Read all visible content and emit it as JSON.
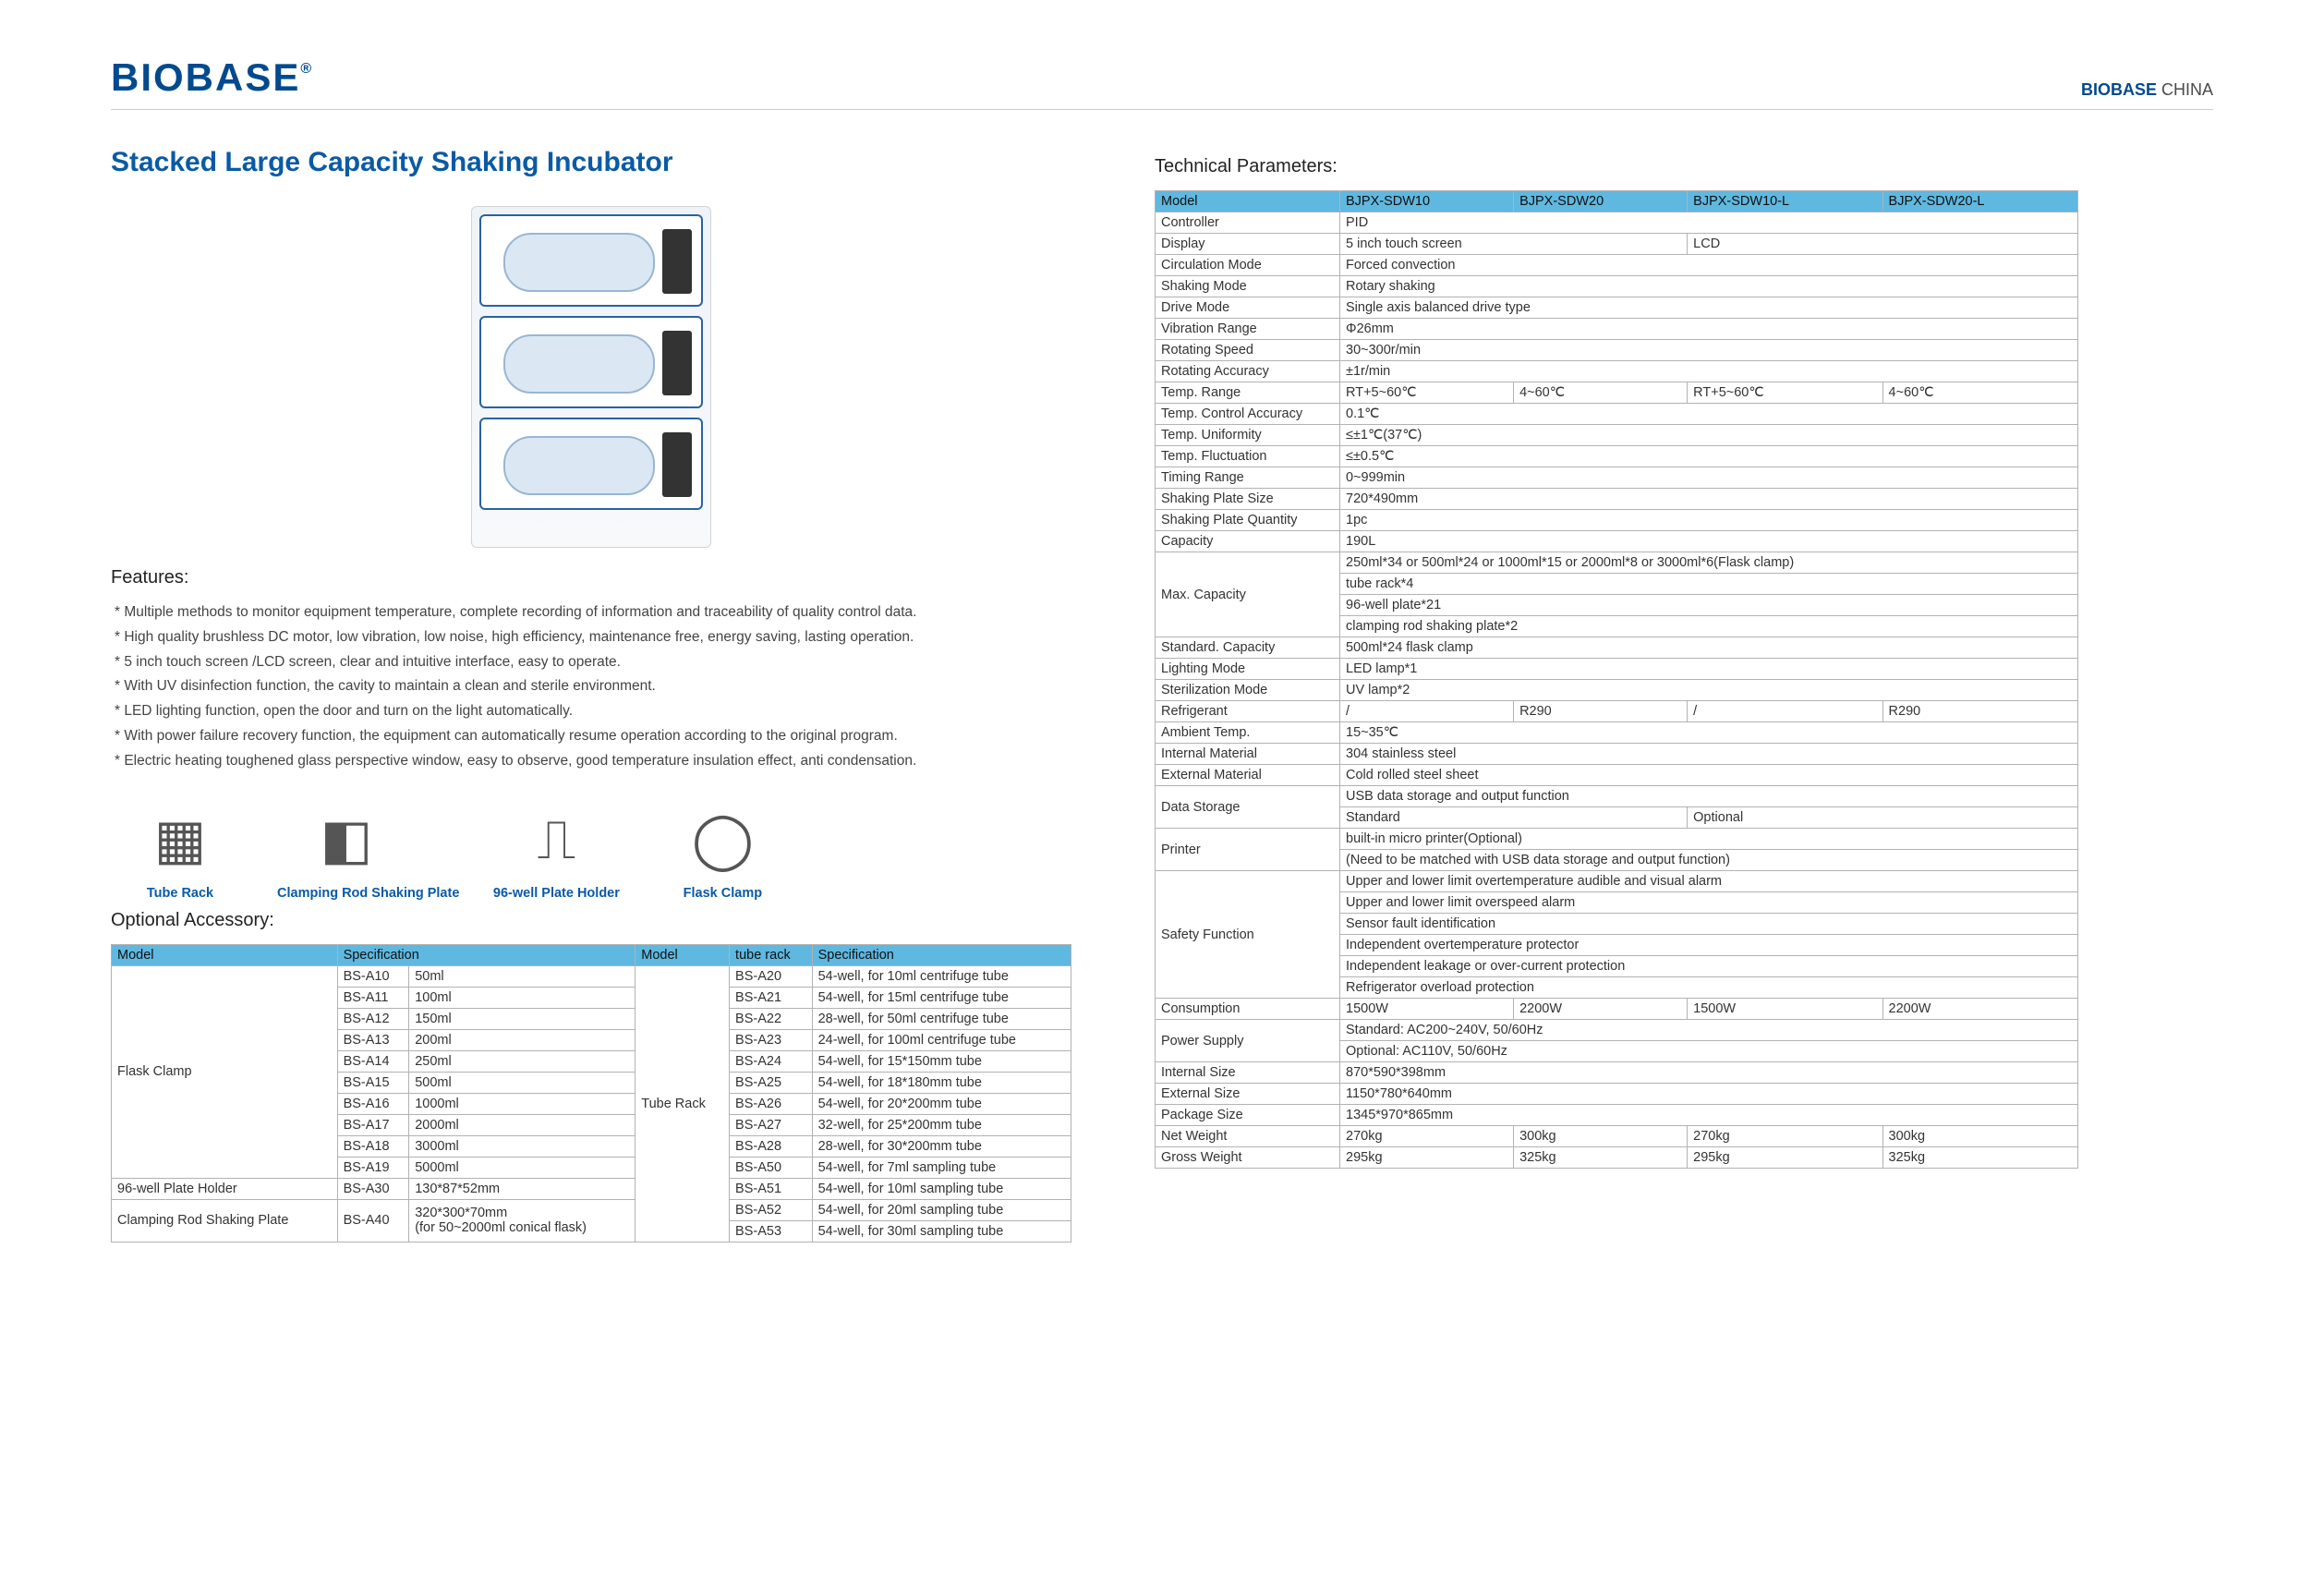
{
  "brand": "BIOBASE",
  "brandReg": "®",
  "topRight": {
    "brand": "BIOBASE",
    "region": "CHINA"
  },
  "title": "Stacked Large Capacity Shaking Incubator",
  "featuresHeading": "Features:",
  "features": [
    "Multiple methods to monitor equipment temperature, complete recording of information and traceability of quality control data.",
    "High quality brushless DC motor, low vibration, low noise, high efficiency, maintenance free, energy saving, lasting operation.",
    "5 inch touch screen /LCD screen, clear and intuitive interface, easy to operate.",
    "With UV disinfection function, the cavity to maintain a clean and sterile environment.",
    "LED lighting function, open the door and turn on the light automatically.",
    "With power failure recovery function, the equipment can automatically resume operation according to the original program.",
    "Electric heating toughened glass perspective window, easy to observe, good temperature insulation effect, anti condensation."
  ],
  "accessories": [
    {
      "glyph": "▦",
      "label": "Tube Rack"
    },
    {
      "glyph": "◧",
      "label": "Clamping Rod Shaking Plate"
    },
    {
      "glyph": "⎍",
      "label": "96-well Plate Holder"
    },
    {
      "glyph": "◯",
      "label": "Flask Clamp"
    }
  ],
  "optionalHeading": "Optional Accessory:",
  "optHeaders": {
    "model": "Model",
    "spec": "Specification",
    "model2": "Model",
    "tr": "tube rack",
    "spec2": "Specification"
  },
  "optGroups": {
    "flaskClamp": "Flask Clamp",
    "plateHolder": "96-well Plate Holder",
    "crsp": "Clamping Rod Shaking Plate",
    "tubeRack": "Tube Rack"
  },
  "flaskRows": [
    [
      "BS-A10",
      "50ml"
    ],
    [
      "BS-A11",
      "100ml"
    ],
    [
      "BS-A12",
      "150ml"
    ],
    [
      "BS-A13",
      "200ml"
    ],
    [
      "BS-A14",
      "250ml"
    ],
    [
      "BS-A15",
      "500ml"
    ],
    [
      "BS-A16",
      "1000ml"
    ],
    [
      "BS-A17",
      "2000ml"
    ],
    [
      "BS-A18",
      "3000ml"
    ],
    [
      "BS-A19",
      "5000ml"
    ]
  ],
  "plateHolderRow": [
    "BS-A30",
    "130*87*52mm"
  ],
  "crspRow": [
    "BS-A40",
    "320*300*70mm\n(for 50~2000ml conical flask)"
  ],
  "tubeRackRows": [
    [
      "BS-A20",
      "54-well, for 10ml centrifuge tube"
    ],
    [
      "BS-A21",
      "54-well, for 15ml centrifuge tube"
    ],
    [
      "BS-A22",
      "28-well, for 50ml centrifuge tube"
    ],
    [
      "BS-A23",
      "24-well, for 100ml centrifuge tube"
    ],
    [
      "BS-A24",
      "54-well, for 15*150mm tube"
    ],
    [
      "BS-A25",
      "54-well, for 18*180mm tube"
    ],
    [
      "BS-A26",
      "54-well, for 20*200mm tube"
    ],
    [
      "BS-A27",
      "32-well, for 25*200mm tube"
    ],
    [
      "BS-A28",
      "28-well, for 30*200mm tube"
    ],
    [
      "BS-A50",
      "54-well, for 7ml sampling tube"
    ],
    [
      "BS-A51",
      "54-well, for 10ml sampling tube"
    ],
    [
      "BS-A52",
      "54-well, for 20ml sampling tube"
    ],
    [
      "BS-A53",
      "54-well, for 30ml sampling tube"
    ]
  ],
  "techHeading": "Technical Parameters:",
  "techModelHeader": "Model",
  "techModels": [
    "BJPX-SDW10",
    "BJPX-SDW20",
    "BJPX-SDW10-L",
    "BJPX-SDW20-L"
  ],
  "techRows": [
    {
      "label": "Controller",
      "cells": [
        {
          "v": "PID",
          "span": 4
        }
      ]
    },
    {
      "label": "Display",
      "cells": [
        {
          "v": "5 inch touch screen",
          "span": 2
        },
        {
          "v": "LCD",
          "span": 2
        }
      ]
    },
    {
      "label": "Circulation Mode",
      "cells": [
        {
          "v": "Forced convection",
          "span": 4
        }
      ]
    },
    {
      "label": "Shaking Mode",
      "cells": [
        {
          "v": "Rotary shaking",
          "span": 4
        }
      ]
    },
    {
      "label": "Drive Mode",
      "cells": [
        {
          "v": "Single axis balanced drive type",
          "span": 4
        }
      ]
    },
    {
      "label": "Vibration Range",
      "cells": [
        {
          "v": "Φ26mm",
          "span": 4
        }
      ]
    },
    {
      "label": "Rotating Speed",
      "cells": [
        {
          "v": "30~300r/min",
          "span": 4
        }
      ]
    },
    {
      "label": "Rotating Accuracy",
      "cells": [
        {
          "v": "±1r/min",
          "span": 4
        }
      ]
    },
    {
      "label": "Temp. Range",
      "cells": [
        {
          "v": "RT+5~60℃",
          "span": 1
        },
        {
          "v": "4~60℃",
          "span": 1
        },
        {
          "v": "RT+5~60℃",
          "span": 1
        },
        {
          "v": "4~60℃",
          "span": 1
        }
      ]
    },
    {
      "label": "Temp. Control Accuracy",
      "cells": [
        {
          "v": "0.1℃",
          "span": 4
        }
      ]
    },
    {
      "label": "Temp. Uniformity",
      "cells": [
        {
          "v": "≤±1℃(37℃)",
          "span": 4
        }
      ]
    },
    {
      "label": "Temp. Fluctuation",
      "cells": [
        {
          "v": "≤±0.5℃",
          "span": 4
        }
      ]
    },
    {
      "label": "Timing Range",
      "cells": [
        {
          "v": "0~999min",
          "span": 4
        }
      ]
    },
    {
      "label": "Shaking Plate Size",
      "cells": [
        {
          "v": "720*490mm",
          "span": 4
        }
      ]
    },
    {
      "label": "Shaking Plate Quantity",
      "cells": [
        {
          "v": "1pc",
          "span": 4
        }
      ]
    },
    {
      "label": "Capacity",
      "cells": [
        {
          "v": "190L",
          "span": 4
        }
      ]
    },
    {
      "label": "Max. Capacity",
      "multi": [
        "250ml*34 or 500ml*24 or 1000ml*15 or 2000ml*8 or 3000ml*6(Flask clamp)",
        "tube rack*4",
        "96-well plate*21",
        "clamping rod shaking plate*2"
      ]
    },
    {
      "label": "Standard. Capacity",
      "cells": [
        {
          "v": "500ml*24 flask clamp",
          "span": 4
        }
      ]
    },
    {
      "label": "Lighting Mode",
      "cells": [
        {
          "v": "LED lamp*1",
          "span": 4
        }
      ]
    },
    {
      "label": "Sterilization Mode",
      "cells": [
        {
          "v": "UV lamp*2",
          "span": 4
        }
      ]
    },
    {
      "label": "Refrigerant",
      "cells": [
        {
          "v": "/",
          "span": 1
        },
        {
          "v": "R290",
          "span": 1
        },
        {
          "v": "/",
          "span": 1
        },
        {
          "v": "R290",
          "span": 1
        }
      ]
    },
    {
      "label": "Ambient Temp.",
      "cells": [
        {
          "v": "15~35℃",
          "span": 4
        }
      ]
    },
    {
      "label": "Internal Material",
      "cells": [
        {
          "v": "304 stainless steel",
          "span": 4
        }
      ]
    },
    {
      "label": "External Material",
      "cells": [
        {
          "v": "Cold rolled steel sheet",
          "span": 4
        }
      ]
    },
    {
      "label": "Data Storage",
      "multiSplit": [
        [
          {
            "v": "USB data storage and output function",
            "span": 4
          }
        ],
        [
          {
            "v": "Standard",
            "span": 2
          },
          {
            "v": "Optional",
            "span": 2
          }
        ]
      ]
    },
    {
      "label": "Printer",
      "multi": [
        "built-in micro printer(Optional)",
        "(Need to be matched with USB data storage and output function)"
      ]
    },
    {
      "label": "Safety Function",
      "multi": [
        "Upper and lower limit overtemperature audible and visual alarm",
        "Upper and lower limit overspeed alarm",
        "Sensor fault identification",
        "Independent overtemperature protector",
        "Independent leakage or over-current protection",
        "Refrigerator overload protection"
      ]
    },
    {
      "label": "Consumption",
      "cells": [
        {
          "v": "1500W",
          "span": 1
        },
        {
          "v": "2200W",
          "span": 1
        },
        {
          "v": "1500W",
          "span": 1
        },
        {
          "v": "2200W",
          "span": 1
        }
      ]
    },
    {
      "label": "Power Supply",
      "multi": [
        "Standard: AC200~240V, 50/60Hz",
        "Optional: AC110V, 50/60Hz"
      ]
    },
    {
      "label": "Internal Size",
      "cells": [
        {
          "v": "870*590*398mm",
          "span": 4
        }
      ]
    },
    {
      "label": "External Size",
      "cells": [
        {
          "v": "1150*780*640mm",
          "span": 4
        }
      ]
    },
    {
      "label": "Package Size",
      "cells": [
        {
          "v": "1345*970*865mm",
          "span": 4
        }
      ]
    },
    {
      "label": "Net Weight",
      "cells": [
        {
          "v": "270kg",
          "span": 1
        },
        {
          "v": "300kg",
          "span": 1
        },
        {
          "v": "270kg",
          "span": 1
        },
        {
          "v": "300kg",
          "span": 1
        }
      ]
    },
    {
      "label": "Gross Weight",
      "cells": [
        {
          "v": "295kg",
          "span": 1
        },
        {
          "v": "325kg",
          "span": 1
        },
        {
          "v": "295kg",
          "span": 1
        },
        {
          "v": "325kg",
          "span": 1
        }
      ]
    }
  ]
}
